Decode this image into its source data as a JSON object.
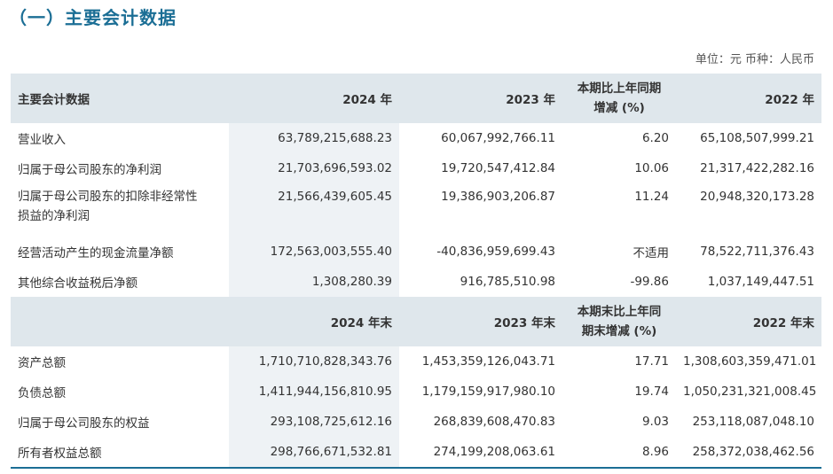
{
  "title": "（一）主要会计数据",
  "unit_line": "单位：元  币种：人民币",
  "header1": {
    "c0": "主要会计数据",
    "c1": "2024 年",
    "c2": "2023 年",
    "c3_line1": "本期比上年同期",
    "c3_line2": "增减 (%)",
    "c4": "2022 年"
  },
  "rows1": [
    {
      "label": "营业收入",
      "v2024": "63,789,215,688.23",
      "v2023": "60,067,992,766.11",
      "chg": "6.20",
      "v2022": "65,108,507,999.21"
    },
    {
      "label": "归属于母公司股东的净利润",
      "v2024": "21,703,696,593.02",
      "v2023": "19,720,547,412.84",
      "chg": "10.06",
      "v2022": "21,317,422,282.16"
    },
    {
      "label_line1": "归属于母公司股东的扣除非经常性",
      "label_line2": "损益的净利润",
      "v2024": "21,566,439,605.45",
      "v2023": "19,386,903,206.87",
      "chg": "11.24",
      "v2022": "20,948,320,173.28"
    },
    {
      "label": "经营活动产生的现金流量净额",
      "v2024": "172,563,003,555.40",
      "v2023": "-40,836,959,699.43",
      "chg": "不适用",
      "v2022": "78,522,711,376.43"
    },
    {
      "label": "其他综合收益税后净额",
      "v2024": "1,308,280.39",
      "v2023": "916,785,510.98",
      "chg": "-99.86",
      "v2022": "1,037,149,447.51"
    }
  ],
  "header2": {
    "c0": "",
    "c1": "2024 年末",
    "c2": "2023 年末",
    "c3_line1": "本期末比上年同",
    "c3_line2": "期末增减 (%)",
    "c4": "2022 年末"
  },
  "rows2": [
    {
      "label": "资产总额",
      "v2024": "1,710,710,828,343.76",
      "v2023": "1,453,359,126,043.71",
      "chg": "17.71",
      "v2022": "1,308,603,359,471.01"
    },
    {
      "label": "负债总额",
      "v2024": "1,411,944,156,810.95",
      "v2023": "1,179,159,917,980.10",
      "chg": "19.74",
      "v2022": "1,050,231,321,008.45"
    },
    {
      "label": "归属于母公司股东的权益",
      "v2024": "293,108,725,612.16",
      "v2023": "268,839,608,470.83",
      "chg": "9.03",
      "v2022": "253,118,087,048.10"
    },
    {
      "label": "所有者权益总额",
      "v2024": "298,766,671,532.81",
      "v2023": "274,199,208,063.61",
      "chg": "8.96",
      "v2022": "258,372,038,462.56"
    }
  ],
  "colors": {
    "title": "#1b6e95",
    "header_bg": "#dfe7ec",
    "shade_bg": "#eef2f5",
    "rule": "#1b6e95"
  }
}
